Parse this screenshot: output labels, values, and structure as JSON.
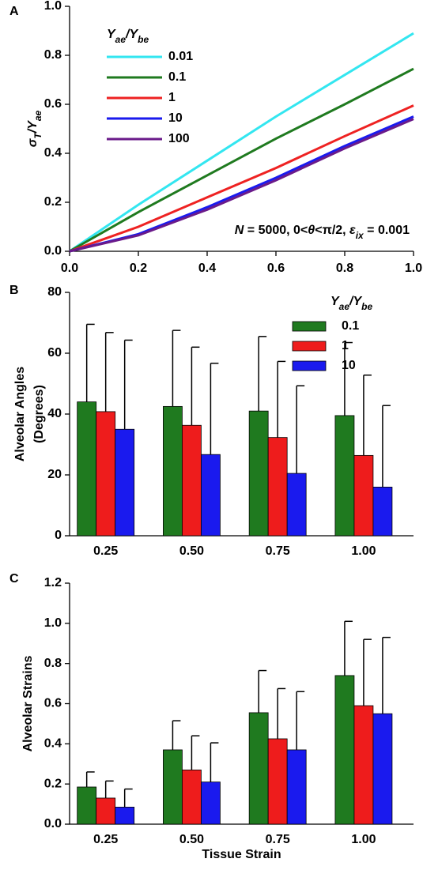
{
  "chart_data": [
    {
      "type": "line",
      "panel": "A",
      "y_label_parts": [
        "σ",
        "T",
        "/Y",
        "ae"
      ],
      "legend_title_parts": [
        "Y",
        "ae",
        "/Y",
        "be"
      ],
      "annotation_parts": [
        "N",
        " = 5000, 0<",
        "θ",
        "<π/2, ",
        "ε",
        "ix",
        " = 0.001"
      ],
      "x": [
        0,
        0.2,
        0.4,
        0.6,
        0.8,
        1.0
      ],
      "series": [
        {
          "name": "0.01",
          "color": "#33e6f0",
          "values": [
            0,
            0.19,
            0.37,
            0.55,
            0.72,
            0.89
          ]
        },
        {
          "name": "0.1",
          "color": "#1f7a1f",
          "values": [
            0,
            0.16,
            0.31,
            0.46,
            0.6,
            0.745
          ]
        },
        {
          "name": "1",
          "color": "#ee2222",
          "values": [
            0,
            0.1,
            0.22,
            0.34,
            0.47,
            0.595
          ]
        },
        {
          "name": "10",
          "color": "#1a1aee",
          "values": [
            0,
            0.07,
            0.18,
            0.3,
            0.43,
            0.55
          ]
        },
        {
          "name": "100",
          "color": "#6a1a8a",
          "values": [
            0,
            0.065,
            0.17,
            0.29,
            0.42,
            0.54
          ]
        }
      ],
      "xlim": [
        0,
        1
      ],
      "ylim": [
        0,
        1
      ],
      "xticks": [
        {
          "value": 0,
          "label": "0.0"
        },
        0.2,
        0.4,
        0.6,
        0.8,
        {
          "value": 1,
          "label": "1.0"
        }
      ],
      "yticks": [
        {
          "value": 0,
          "label": "0.0"
        },
        0.2,
        0.4,
        0.6,
        0.8,
        {
          "value": 1,
          "label": "1.0"
        }
      ]
    },
    {
      "type": "bar",
      "panel": "B",
      "y_label_lines": [
        "Alveolar Angles",
        "(Degrees)"
      ],
      "legend_title_parts": [
        "Y",
        "ae",
        "/Y",
        "be"
      ],
      "categories": [
        "0.25",
        "0.50",
        "0.75",
        "1.00"
      ],
      "series": [
        {
          "name": "0.1",
          "color": "#1f7a1f",
          "values": [
            44,
            42.5,
            41,
            39.5
          ],
          "errors": [
            25.5,
            25,
            24.5,
            24
          ]
        },
        {
          "name": "1",
          "color": "#ee1c1c",
          "values": [
            40.8,
            36.3,
            32.3,
            26.4
          ],
          "errors": [
            26,
            25.7,
            25,
            26.4
          ]
        },
        {
          "name": "10",
          "color": "#1a1aee",
          "values": [
            35,
            26.7,
            20.5,
            16
          ],
          "errors": [
            29.3,
            30,
            28.8,
            26.8
          ]
        }
      ],
      "ylim": [
        0,
        80
      ],
      "yticks": [
        0,
        20,
        40,
        60,
        80
      ]
    },
    {
      "type": "bar",
      "panel": "C",
      "y_label_lines": [
        "Alveolar Strains"
      ],
      "x_label": "Tissue Strain",
      "categories": [
        "0.25",
        "0.50",
        "0.75",
        "1.00"
      ],
      "series": [
        {
          "name": "0.1",
          "color": "#1f7a1f",
          "values": [
            0.185,
            0.37,
            0.555,
            0.74
          ],
          "errors": [
            0.075,
            0.145,
            0.21,
            0.27
          ]
        },
        {
          "name": "1",
          "color": "#ee1c1c",
          "values": [
            0.13,
            0.27,
            0.425,
            0.59
          ],
          "errors": [
            0.085,
            0.17,
            0.25,
            0.33
          ]
        },
        {
          "name": "10",
          "color": "#1a1aee",
          "values": [
            0.085,
            0.21,
            0.37,
            0.55
          ],
          "errors": [
            0.09,
            0.195,
            0.29,
            0.38
          ]
        }
      ],
      "ylim": [
        0,
        1.2
      ],
      "yticks": [
        {
          "value": 0,
          "label": "0.0"
        },
        0.2,
        0.4,
        0.6,
        0.8,
        {
          "value": 1,
          "label": "1.0"
        },
        1.2
      ]
    }
  ]
}
